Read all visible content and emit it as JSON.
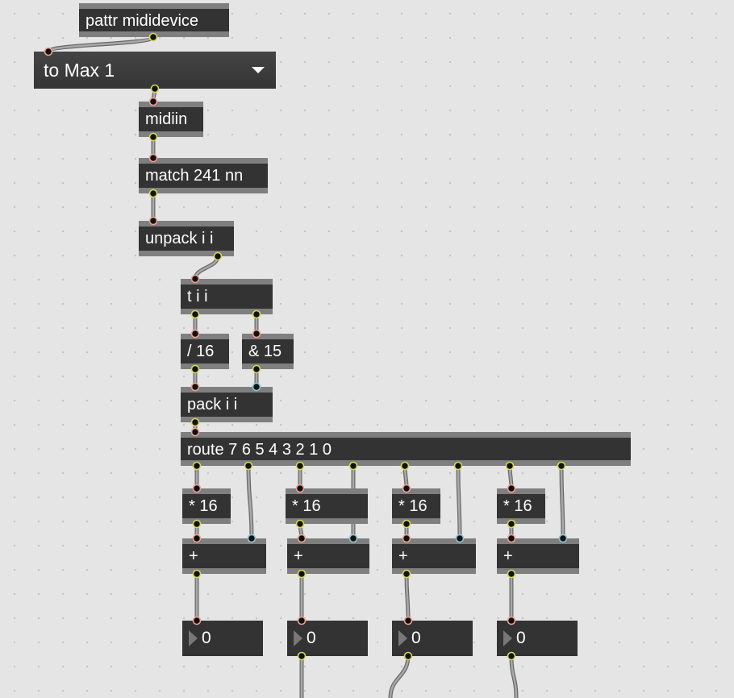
{
  "patcher": {
    "pattr": "pattr mididevice",
    "menu": {
      "selected": "to Max 1"
    },
    "midiin": "midiin",
    "match": "match 241 nn",
    "unpack": "unpack i i",
    "trigger": "t i i",
    "div": "/ 16",
    "and": "& 15",
    "pack": "pack i i",
    "route": "route 7 6 5 4 3 2 1 0",
    "mul": [
      "* 16",
      "* 16",
      "* 16",
      "* 16"
    ],
    "add": [
      "+",
      "+",
      "+",
      "+"
    ],
    "numbers": [
      "0",
      "0",
      "0",
      "0"
    ]
  },
  "colors": {
    "background": "#e5e5e5",
    "box": "#333333",
    "inlet": "#f0a090",
    "outlet": "#d8d850",
    "cold_inlet": "#80c8d8",
    "cord": "#a0a0a0"
  }
}
